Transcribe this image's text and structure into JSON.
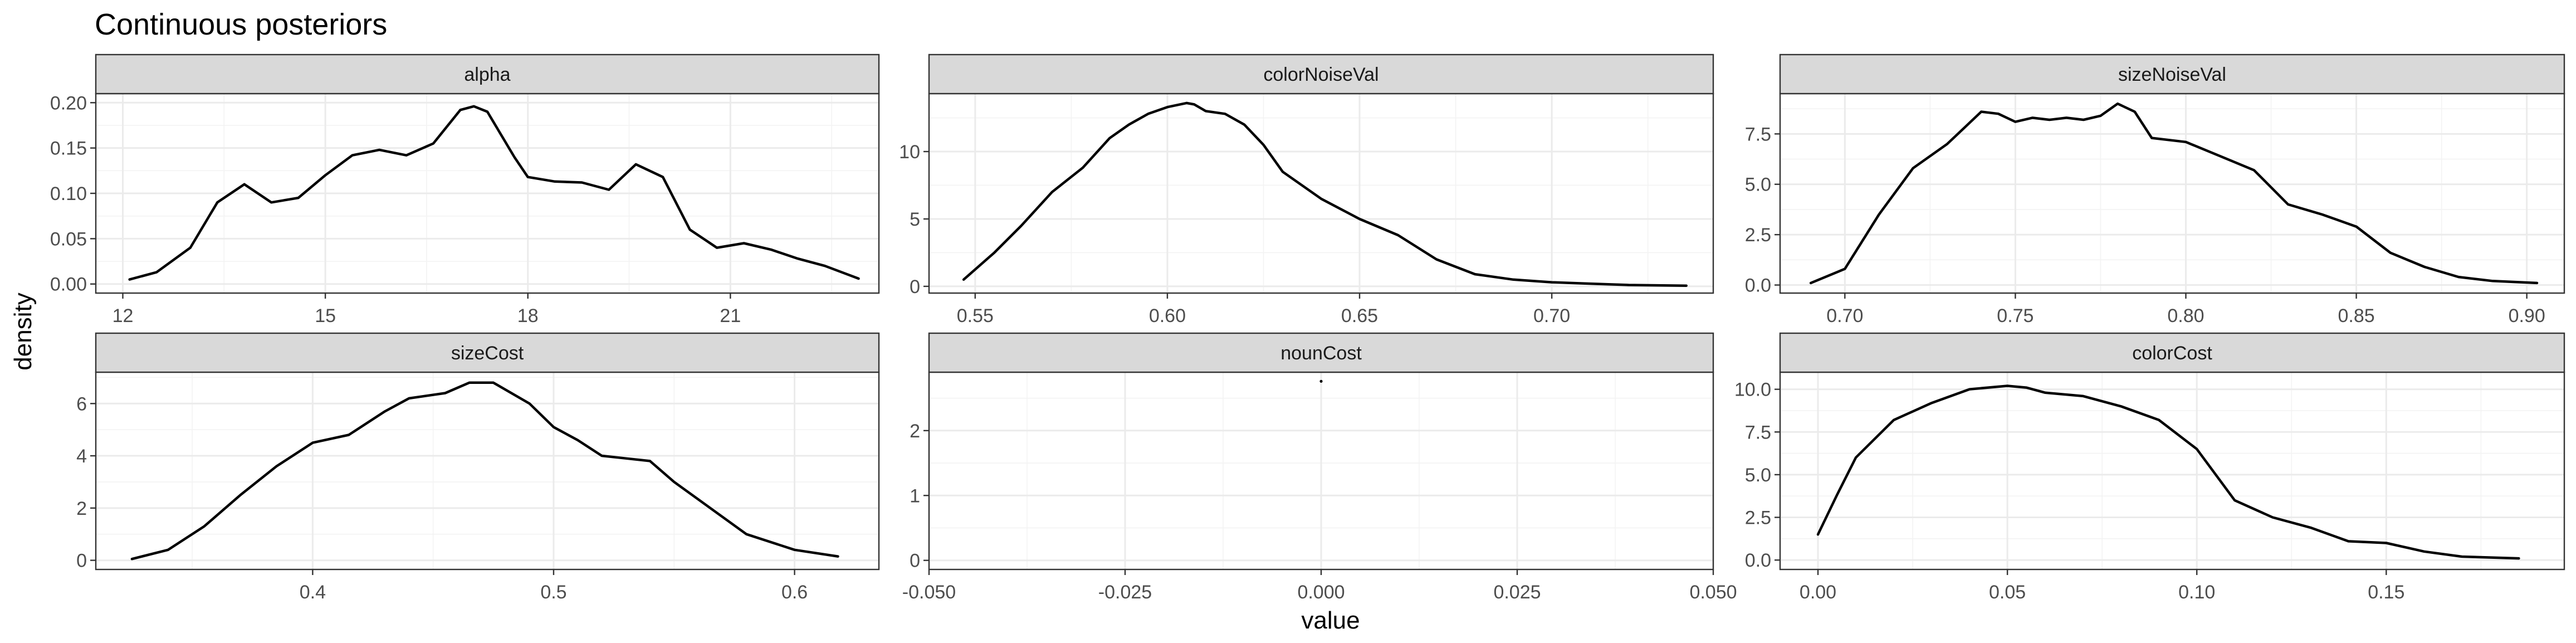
{
  "chart_data": {
    "type": "line",
    "title": "Continuous posteriors",
    "xlabel": "value",
    "ylabel": "density",
    "facet_scales": "free",
    "grid": true,
    "legend": "none",
    "panels": [
      {
        "name": "alpha",
        "xlim": [
          11.6,
          23.2
        ],
        "ylim": [
          -0.01,
          0.21
        ],
        "xticks": [
          12,
          15,
          18,
          21
        ],
        "xtick_labels": [
          "12",
          "15",
          "18",
          "21"
        ],
        "yticks": [
          0.0,
          0.05,
          0.1,
          0.15,
          0.2
        ],
        "ytick_labels": [
          "0.00",
          "0.05",
          "0.10",
          "0.15",
          "0.20"
        ],
        "x": [
          12.1,
          12.5,
          13.0,
          13.4,
          13.8,
          14.2,
          14.6,
          15.0,
          15.4,
          15.8,
          16.2,
          16.6,
          17.0,
          17.2,
          17.4,
          17.8,
          18.0,
          18.4,
          18.8,
          19.2,
          19.6,
          20.0,
          20.4,
          20.8,
          21.2,
          21.6,
          22.0,
          22.4,
          22.9
        ],
        "y": [
          0.005,
          0.013,
          0.04,
          0.09,
          0.11,
          0.09,
          0.095,
          0.12,
          0.142,
          0.148,
          0.142,
          0.155,
          0.192,
          0.196,
          0.19,
          0.14,
          0.118,
          0.113,
          0.112,
          0.104,
          0.132,
          0.118,
          0.06,
          0.04,
          0.045,
          0.038,
          0.028,
          0.02,
          0.006
        ]
      },
      {
        "name": "colorNoiseVal",
        "xlim": [
          0.538,
          0.742
        ],
        "ylim": [
          -0.5,
          14.3
        ],
        "xticks": [
          0.55,
          0.6,
          0.65,
          0.7
        ],
        "xtick_labels": [
          "0.55",
          "0.60",
          "0.65",
          "0.70"
        ],
        "yticks": [
          0,
          5,
          10
        ],
        "ytick_labels": [
          "0",
          "5",
          "10"
        ],
        "x": [
          0.547,
          0.555,
          0.562,
          0.57,
          0.578,
          0.585,
          0.59,
          0.595,
          0.6,
          0.605,
          0.607,
          0.61,
          0.615,
          0.62,
          0.625,
          0.63,
          0.64,
          0.65,
          0.66,
          0.67,
          0.68,
          0.69,
          0.7,
          0.71,
          0.72,
          0.735
        ],
        "y": [
          0.5,
          2.5,
          4.5,
          7.0,
          8.8,
          11.0,
          12.0,
          12.8,
          13.3,
          13.6,
          13.5,
          13.0,
          12.8,
          12.0,
          10.5,
          8.5,
          6.5,
          5.0,
          3.8,
          2.0,
          0.9,
          0.5,
          0.3,
          0.2,
          0.1,
          0.05
        ]
      },
      {
        "name": "sizeNoiseVal",
        "xlim": [
          0.681,
          0.911
        ],
        "ylim": [
          -0.4,
          9.5
        ],
        "xticks": [
          0.7,
          0.75,
          0.8,
          0.85,
          0.9
        ],
        "xtick_labels": [
          "0.70",
          "0.75",
          "0.80",
          "0.85",
          "0.90"
        ],
        "yticks": [
          0.0,
          2.5,
          5.0,
          7.5
        ],
        "ytick_labels": [
          "0.0",
          "2.5",
          "5.0",
          "7.5"
        ],
        "x": [
          0.69,
          0.7,
          0.71,
          0.72,
          0.73,
          0.735,
          0.74,
          0.745,
          0.75,
          0.755,
          0.76,
          0.765,
          0.77,
          0.775,
          0.78,
          0.785,
          0.79,
          0.8,
          0.81,
          0.82,
          0.83,
          0.84,
          0.85,
          0.86,
          0.87,
          0.88,
          0.89,
          0.903
        ],
        "y": [
          0.1,
          0.8,
          3.5,
          5.8,
          7.0,
          7.8,
          8.6,
          8.5,
          8.1,
          8.3,
          8.2,
          8.3,
          8.2,
          8.4,
          9.0,
          8.6,
          7.3,
          7.1,
          6.4,
          5.7,
          4.0,
          3.5,
          2.9,
          1.6,
          0.9,
          0.4,
          0.2,
          0.1
        ]
      },
      {
        "name": "sizeCost",
        "xlim": [
          0.31,
          0.635
        ],
        "ylim": [
          -0.35,
          7.2
        ],
        "xticks": [
          0.4,
          0.5,
          0.6
        ],
        "xtick_labels": [
          "0.4",
          "0.5",
          "0.6"
        ],
        "yticks": [
          0,
          2,
          4,
          6
        ],
        "ytick_labels": [
          "0",
          "2",
          "4",
          "6"
        ],
        "x": [
          0.325,
          0.34,
          0.355,
          0.37,
          0.385,
          0.4,
          0.415,
          0.43,
          0.44,
          0.455,
          0.465,
          0.475,
          0.49,
          0.5,
          0.51,
          0.52,
          0.53,
          0.54,
          0.55,
          0.565,
          0.58,
          0.6,
          0.618
        ],
        "y": [
          0.05,
          0.4,
          1.3,
          2.5,
          3.6,
          4.5,
          4.8,
          5.7,
          6.2,
          6.4,
          6.8,
          6.8,
          6.0,
          5.1,
          4.6,
          4.0,
          3.9,
          3.8,
          3.0,
          2.0,
          1.0,
          0.4,
          0.15
        ]
      },
      {
        "name": "nounCost",
        "xlim": [
          -0.05,
          0.05
        ],
        "ylim": [
          -0.14,
          2.9
        ],
        "xticks": [
          -0.05,
          -0.025,
          0.0,
          0.025,
          0.05
        ],
        "xtick_labels": [
          "-0.050",
          "-0.025",
          "0.000",
          "0.025",
          "0.050"
        ],
        "yticks": [
          0,
          1,
          2
        ],
        "ytick_labels": [
          "0",
          "1",
          "2"
        ],
        "x": [
          0.0
        ],
        "y": [
          2.76
        ]
      },
      {
        "name": "colorCost",
        "xlim": [
          -0.01,
          0.197
        ],
        "ylim": [
          -0.55,
          11.0
        ],
        "xticks": [
          0.0,
          0.05,
          0.1,
          0.15
        ],
        "xtick_labels": [
          "0.00",
          "0.05",
          "0.10",
          "0.15"
        ],
        "yticks": [
          0.0,
          2.5,
          5.0,
          7.5,
          10.0
        ],
        "ytick_labels": [
          "0.0",
          "2.5",
          "5.0",
          "7.5",
          "10.0"
        ],
        "x": [
          0.0,
          0.005,
          0.01,
          0.02,
          0.03,
          0.04,
          0.05,
          0.055,
          0.06,
          0.07,
          0.08,
          0.09,
          0.1,
          0.11,
          0.12,
          0.13,
          0.14,
          0.15,
          0.16,
          0.17,
          0.185
        ],
        "y": [
          1.5,
          3.8,
          6.0,
          8.2,
          9.2,
          10.0,
          10.2,
          10.1,
          9.8,
          9.6,
          9.0,
          8.2,
          6.5,
          3.5,
          2.5,
          1.9,
          1.1,
          1.0,
          0.5,
          0.2,
          0.1
        ]
      }
    ]
  }
}
